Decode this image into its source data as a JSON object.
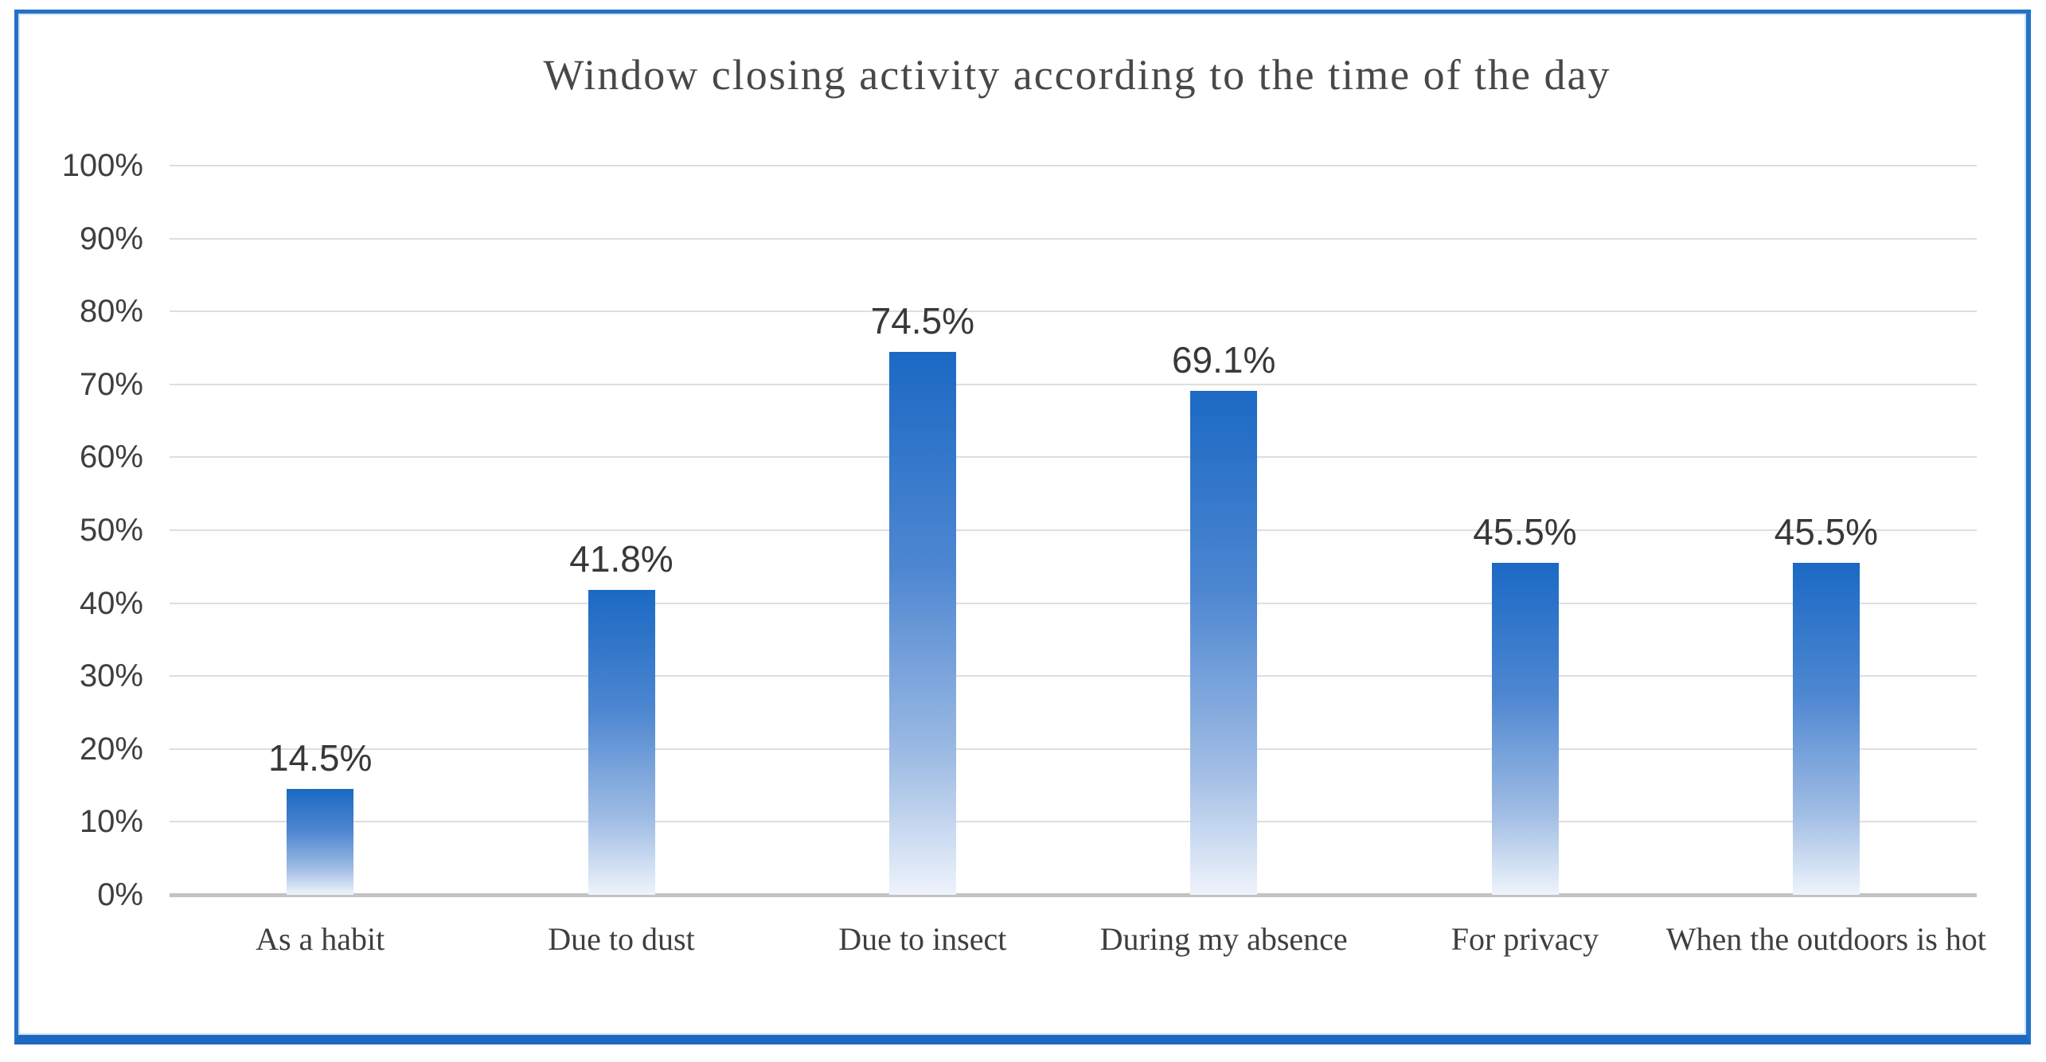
{
  "chart_data": {
    "type": "bar",
    "title": "Window closing activity according to the time of the day",
    "categories": [
      "As a habit",
      "Due to dust",
      "Due to insect",
      "During my absence",
      "For privacy",
      "When the outdoors is hot"
    ],
    "values": [
      14.5,
      41.8,
      74.5,
      69.1,
      45.5,
      45.5
    ],
    "data_labels": [
      "14.5%",
      "41.8%",
      "74.5%",
      "69.1%",
      "45.5%",
      "45.5%"
    ],
    "y_ticks": [
      "0%",
      "10%",
      "20%",
      "30%",
      "40%",
      "50%",
      "60%",
      "70%",
      "80%",
      "90%",
      "100%"
    ],
    "y_tick_values": [
      0,
      10,
      20,
      30,
      40,
      50,
      60,
      70,
      80,
      90,
      100
    ],
    "xlabel": "",
    "ylabel": "",
    "ylim": [
      0,
      100
    ],
    "grid": true,
    "legend": false,
    "colors": {
      "bar_gradient_top": "#1b69c4",
      "bar_gradient_upper_mid": "#4e87d1",
      "bar_gradient_lower_mid": "#9fbce4",
      "bar_gradient_bottom": "#eef3fb",
      "frame_border": "#2471c8",
      "frame_border_bottom": "#1c68c2",
      "gridline": "#dedede",
      "axis_line": "#c3c3c3",
      "title_text": "#484848",
      "tick_text": "#3f3f3f",
      "value_text": "#383838"
    }
  }
}
